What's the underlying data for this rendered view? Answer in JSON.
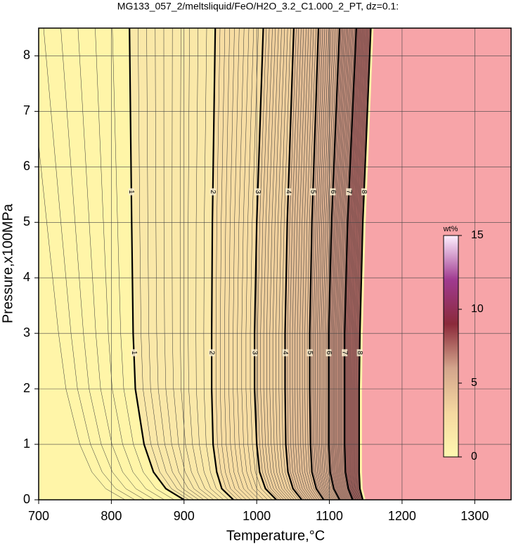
{
  "chart_data": {
    "type": "contour",
    "title": "MG133_057_2/meltsliquid/FeO/H2O_3.2_C1.000_2_PT, dz=0.1:",
    "x_label": "Temperature,°C",
    "y_label": "Pressure,x100MPa",
    "xlim": [
      700,
      1350
    ],
    "ylim": [
      0,
      8.5
    ],
    "xticks": [
      700,
      800,
      900,
      1000,
      1100,
      1200,
      1300
    ],
    "yticks": [
      0,
      1,
      2,
      3,
      4,
      5,
      6,
      7,
      8
    ],
    "grid": true,
    "contours": [
      {
        "level": 1,
        "x": [
          900,
          875,
          858,
          845,
          833,
          830,
          828,
          825
        ],
        "y": [
          0,
          0.2,
          0.5,
          1,
          2,
          3,
          5,
          8.5
        ]
      },
      {
        "level": 2,
        "x": [
          968,
          952,
          945,
          940,
          938,
          938,
          939,
          943
        ],
        "y": [
          0,
          0.2,
          0.5,
          1,
          2,
          3,
          5,
          8.5
        ]
      },
      {
        "level": 3,
        "x": [
          1027,
          1012,
          1004,
          1000,
          997,
          997,
          1000,
          1009
        ],
        "y": [
          0,
          0.2,
          0.5,
          1,
          2,
          3,
          5,
          8.5
        ]
      },
      {
        "level": 4,
        "x": [
          1062,
          1050,
          1043,
          1040,
          1039,
          1039,
          1042,
          1051
        ],
        "y": [
          0,
          0.2,
          0.5,
          1,
          2,
          3,
          5,
          8.5
        ]
      },
      {
        "level": 5,
        "x": [
          1092,
          1082,
          1076,
          1074,
          1073,
          1073,
          1076,
          1085
        ],
        "y": [
          0,
          0.2,
          0.5,
          1,
          2,
          3,
          5,
          8.5
        ]
      },
      {
        "level": 6,
        "x": [
          1114,
          1106,
          1101,
          1099,
          1099,
          1099,
          1103,
          1114
        ],
        "y": [
          0,
          0.2,
          0.5,
          1,
          2,
          3,
          5,
          8.5
        ]
      },
      {
        "level": 7,
        "x": [
          1132,
          1126,
          1122,
          1121,
          1121,
          1121,
          1125,
          1137
        ],
        "y": [
          0,
          0.2,
          0.5,
          1,
          2,
          3,
          5,
          8.5
        ]
      },
      {
        "level": 8,
        "x": [
          1146,
          1142,
          1141,
          1141,
          1141,
          1142,
          1146,
          1157
        ],
        "y": [
          0,
          0.2,
          0.5,
          1,
          2,
          3,
          5,
          8.5
        ]
      }
    ],
    "colorbar": {
      "label": "wt%",
      "lim": [
        0,
        15
      ],
      "ticks": [
        0,
        5,
        10,
        15
      ]
    }
  }
}
